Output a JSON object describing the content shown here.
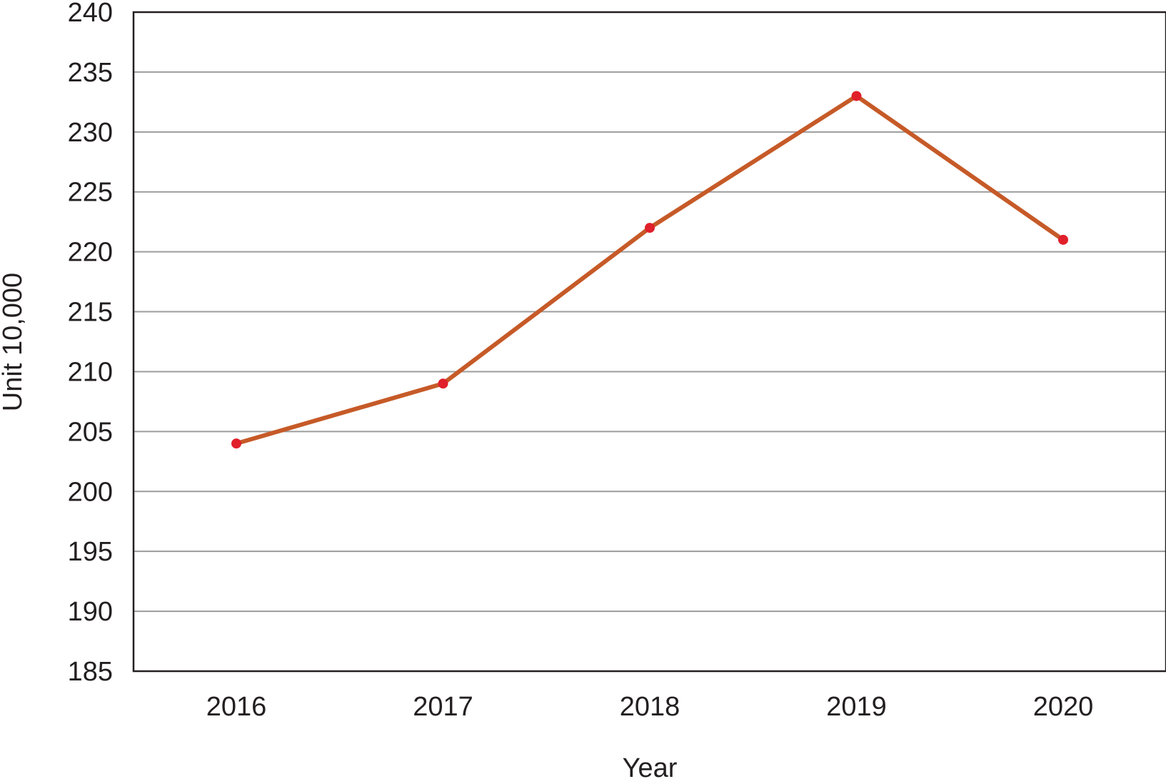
{
  "chart_data": {
    "type": "line",
    "title": "",
    "xlabel": "Year",
    "ylabel": "Unit 10,000",
    "categories": [
      "2016",
      "2017",
      "2018",
      "2019",
      "2020"
    ],
    "series": [
      {
        "values": [
          204,
          209,
          222,
          233,
          221
        ],
        "line_color": "#c65a28",
        "marker_color": "#e0202b"
      }
    ],
    "ylim": [
      185,
      240
    ],
    "yticks": [
      185,
      190,
      195,
      200,
      205,
      210,
      215,
      220,
      225,
      230,
      235,
      240
    ],
    "grid": "horizontal",
    "legend": "none"
  }
}
